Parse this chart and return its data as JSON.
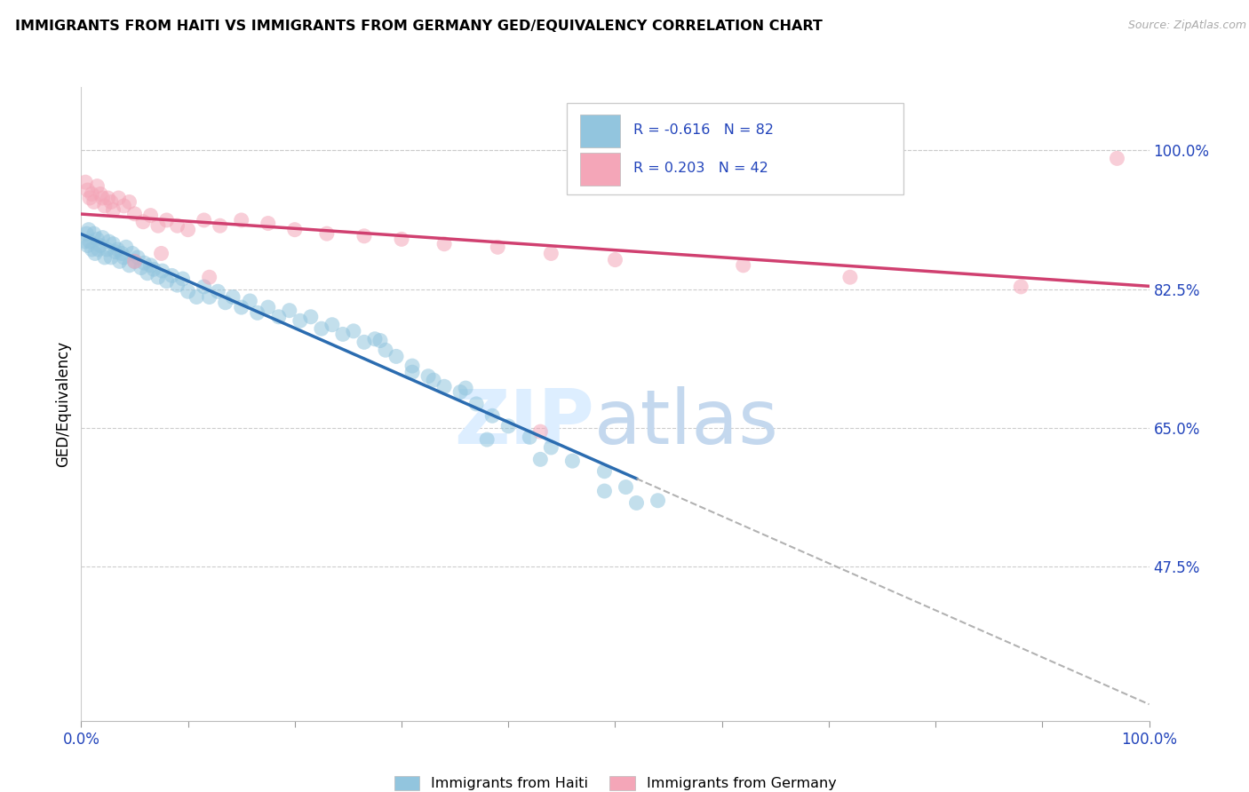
{
  "title": "IMMIGRANTS FROM HAITI VS IMMIGRANTS FROM GERMANY GED/EQUIVALENCY CORRELATION CHART",
  "source": "Source: ZipAtlas.com",
  "ylabel": "GED/Equivalency",
  "ytick_labels": [
    "100.0%",
    "82.5%",
    "65.0%",
    "47.5%"
  ],
  "ytick_values": [
    1.0,
    0.825,
    0.65,
    0.475
  ],
  "legend_label1": "Immigrants from Haiti",
  "legend_label2": "Immigrants from Germany",
  "R1": -0.616,
  "N1": 82,
  "R2": 0.203,
  "N2": 42,
  "color_haiti": "#92c5de",
  "color_germany": "#f4a6b8",
  "color_trendline_haiti": "#2b6cb0",
  "color_trendline_germany": "#d04070",
  "haiti_x": [
    0.004,
    0.005,
    0.006,
    0.007,
    0.008,
    0.01,
    0.012,
    0.013,
    0.015,
    0.016,
    0.018,
    0.02,
    0.022,
    0.024,
    0.026,
    0.028,
    0.03,
    0.032,
    0.034,
    0.036,
    0.038,
    0.04,
    0.042,
    0.045,
    0.048,
    0.05,
    0.053,
    0.056,
    0.059,
    0.062,
    0.065,
    0.068,
    0.072,
    0.076,
    0.08,
    0.085,
    0.09,
    0.095,
    0.1,
    0.108,
    0.115,
    0.12,
    0.128,
    0.135,
    0.142,
    0.15,
    0.158,
    0.165,
    0.175,
    0.185,
    0.195,
    0.205,
    0.215,
    0.225,
    0.235,
    0.245,
    0.255,
    0.265,
    0.275,
    0.285,
    0.295,
    0.31,
    0.325,
    0.34,
    0.355,
    0.37,
    0.385,
    0.4,
    0.42,
    0.44,
    0.46,
    0.49,
    0.51,
    0.54,
    0.36,
    0.28,
    0.31,
    0.33,
    0.49,
    0.52,
    0.38,
    0.43
  ],
  "haiti_y": [
    0.885,
    0.895,
    0.88,
    0.9,
    0.885,
    0.875,
    0.895,
    0.87,
    0.888,
    0.875,
    0.88,
    0.89,
    0.865,
    0.875,
    0.885,
    0.865,
    0.882,
    0.872,
    0.875,
    0.86,
    0.87,
    0.865,
    0.878,
    0.855,
    0.87,
    0.86,
    0.865,
    0.852,
    0.858,
    0.845,
    0.855,
    0.85,
    0.84,
    0.848,
    0.835,
    0.842,
    0.83,
    0.838,
    0.822,
    0.815,
    0.828,
    0.815,
    0.822,
    0.808,
    0.815,
    0.802,
    0.81,
    0.795,
    0.802,
    0.79,
    0.798,
    0.785,
    0.79,
    0.775,
    0.78,
    0.768,
    0.772,
    0.758,
    0.762,
    0.748,
    0.74,
    0.728,
    0.715,
    0.702,
    0.695,
    0.68,
    0.665,
    0.652,
    0.638,
    0.625,
    0.608,
    0.595,
    0.575,
    0.558,
    0.7,
    0.76,
    0.72,
    0.71,
    0.57,
    0.555,
    0.635,
    0.61
  ],
  "germany_x": [
    0.004,
    0.006,
    0.008,
    0.01,
    0.012,
    0.015,
    0.018,
    0.02,
    0.022,
    0.025,
    0.028,
    0.03,
    0.035,
    0.04,
    0.045,
    0.05,
    0.058,
    0.065,
    0.072,
    0.08,
    0.09,
    0.1,
    0.115,
    0.13,
    0.15,
    0.175,
    0.2,
    0.23,
    0.265,
    0.3,
    0.34,
    0.39,
    0.44,
    0.5,
    0.62,
    0.72,
    0.88,
    0.97,
    0.05,
    0.075,
    0.12,
    0.43
  ],
  "germany_y": [
    0.96,
    0.95,
    0.94,
    0.945,
    0.935,
    0.955,
    0.945,
    0.94,
    0.93,
    0.94,
    0.935,
    0.925,
    0.94,
    0.93,
    0.935,
    0.92,
    0.91,
    0.918,
    0.905,
    0.912,
    0.905,
    0.9,
    0.912,
    0.905,
    0.912,
    0.908,
    0.9,
    0.895,
    0.892,
    0.888,
    0.882,
    0.878,
    0.87,
    0.862,
    0.855,
    0.84,
    0.828,
    0.99,
    0.86,
    0.87,
    0.84,
    0.645
  ],
  "xmin": 0.0,
  "xmax": 1.0,
  "ymin": 0.28,
  "ymax": 1.08
}
